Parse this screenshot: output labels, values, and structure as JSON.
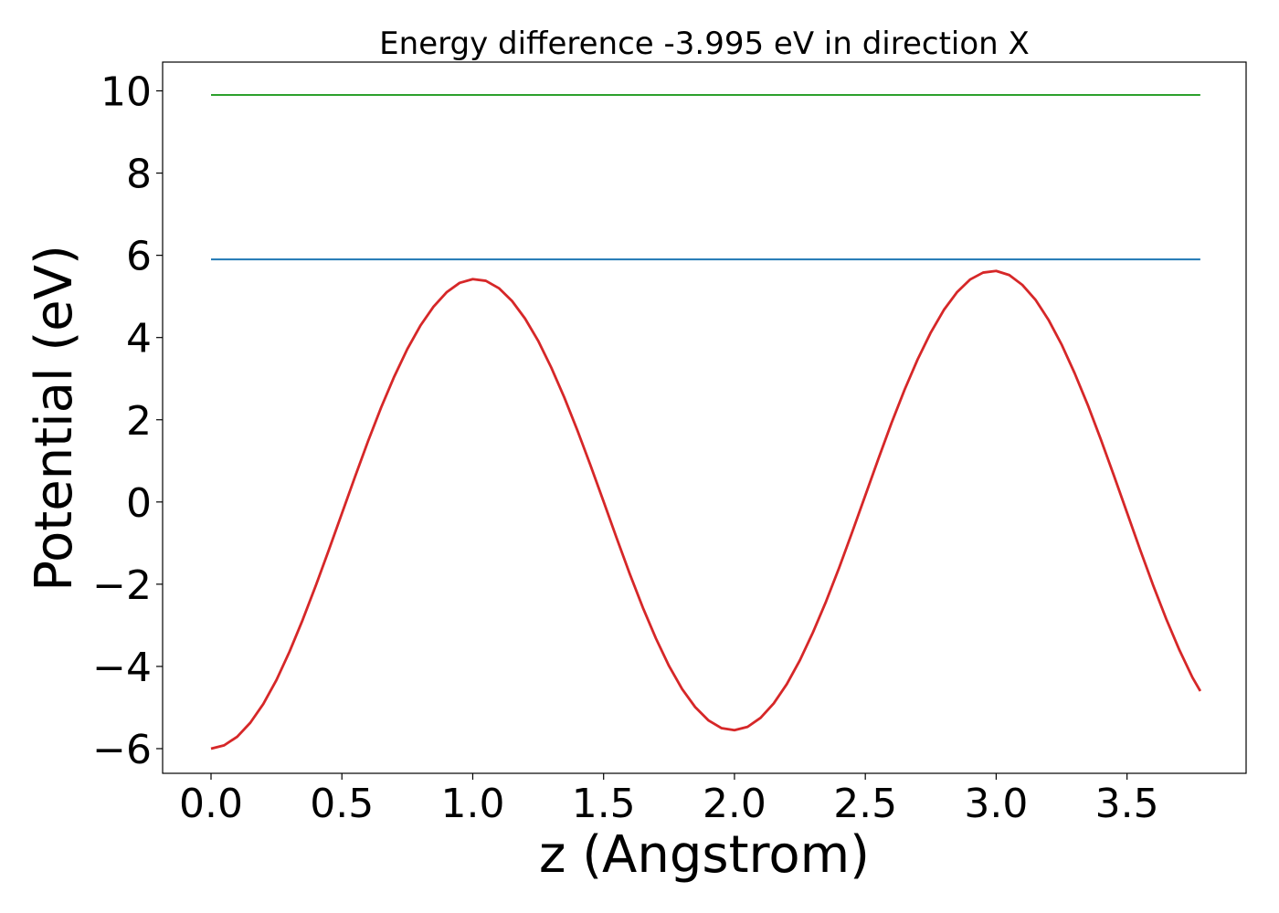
{
  "chart_data": {
    "type": "line",
    "title": "Energy difference -3.995 eV in direction X",
    "xlabel": "z (Angstrom)",
    "ylabel": "Potential (eV)",
    "xlim": [
      -0.185,
      3.955
    ],
    "ylim": [
      -6.6,
      10.7
    ],
    "xticks": [
      0.0,
      0.5,
      1.0,
      1.5,
      2.0,
      2.5,
      3.0,
      3.5
    ],
    "xtick_labels": [
      "0.0",
      "0.5",
      "1.0",
      "1.5",
      "2.0",
      "2.5",
      "3.0",
      "3.5"
    ],
    "yticks": [
      -6,
      -4,
      -2,
      0,
      2,
      4,
      6,
      8,
      10
    ],
    "ytick_labels": [
      "−6",
      "−4",
      "−2",
      "0",
      "2",
      "4",
      "6",
      "8",
      "10"
    ],
    "grid": false,
    "series": [
      {
        "color": "#d62728",
        "x": [
          0.0,
          0.05,
          0.1,
          0.15,
          0.2,
          0.25,
          0.3,
          0.35,
          0.4,
          0.45,
          0.5,
          0.55,
          0.6,
          0.65,
          0.7,
          0.75,
          0.8,
          0.85,
          0.9,
          0.95,
          1.0,
          1.05,
          1.1,
          1.15,
          1.2,
          1.25,
          1.3,
          1.35,
          1.4,
          1.45,
          1.5,
          1.55,
          1.6,
          1.65,
          1.7,
          1.75,
          1.8,
          1.85,
          1.9,
          1.95,
          2.0,
          2.05,
          2.1,
          2.15,
          2.2,
          2.25,
          2.3,
          2.35,
          2.4,
          2.45,
          2.5,
          2.55,
          2.6,
          2.65,
          2.7,
          2.75,
          2.8,
          2.85,
          2.9,
          2.95,
          3.0,
          3.05,
          3.1,
          3.15,
          3.2,
          3.25,
          3.3,
          3.35,
          3.4,
          3.45,
          3.5,
          3.55,
          3.6,
          3.65,
          3.7,
          3.75,
          3.78
        ],
        "y": [
          -6.0,
          -5.92,
          -5.71,
          -5.37,
          -4.91,
          -4.33,
          -3.64,
          -2.87,
          -2.04,
          -1.17,
          -0.28,
          0.61,
          1.48,
          2.3,
          3.05,
          3.72,
          4.29,
          4.75,
          5.1,
          5.33,
          5.42,
          5.38,
          5.2,
          4.89,
          4.46,
          3.92,
          3.27,
          2.54,
          1.74,
          0.89,
          0.01,
          -0.88,
          -1.75,
          -2.57,
          -3.32,
          -3.99,
          -4.55,
          -4.99,
          -5.31,
          -5.5,
          -5.55,
          -5.47,
          -5.25,
          -4.9,
          -4.43,
          -3.85,
          -3.17,
          -2.42,
          -1.6,
          -0.73,
          0.16,
          1.05,
          1.92,
          2.73,
          3.47,
          4.12,
          4.67,
          5.1,
          5.41,
          5.58,
          5.62,
          5.52,
          5.28,
          4.92,
          4.43,
          3.83,
          3.13,
          2.36,
          1.52,
          0.64,
          -0.26,
          -1.16,
          -2.03,
          -2.85,
          -3.6,
          -4.27,
          -4.6
        ]
      },
      {
        "color": "#1f77b4",
        "x": [
          0.0,
          3.78
        ],
        "y": [
          5.9,
          5.9
        ]
      },
      {
        "color": "#2ca02c",
        "x": [
          0.0,
          3.78
        ],
        "y": [
          9.9,
          9.9
        ]
      }
    ]
  }
}
